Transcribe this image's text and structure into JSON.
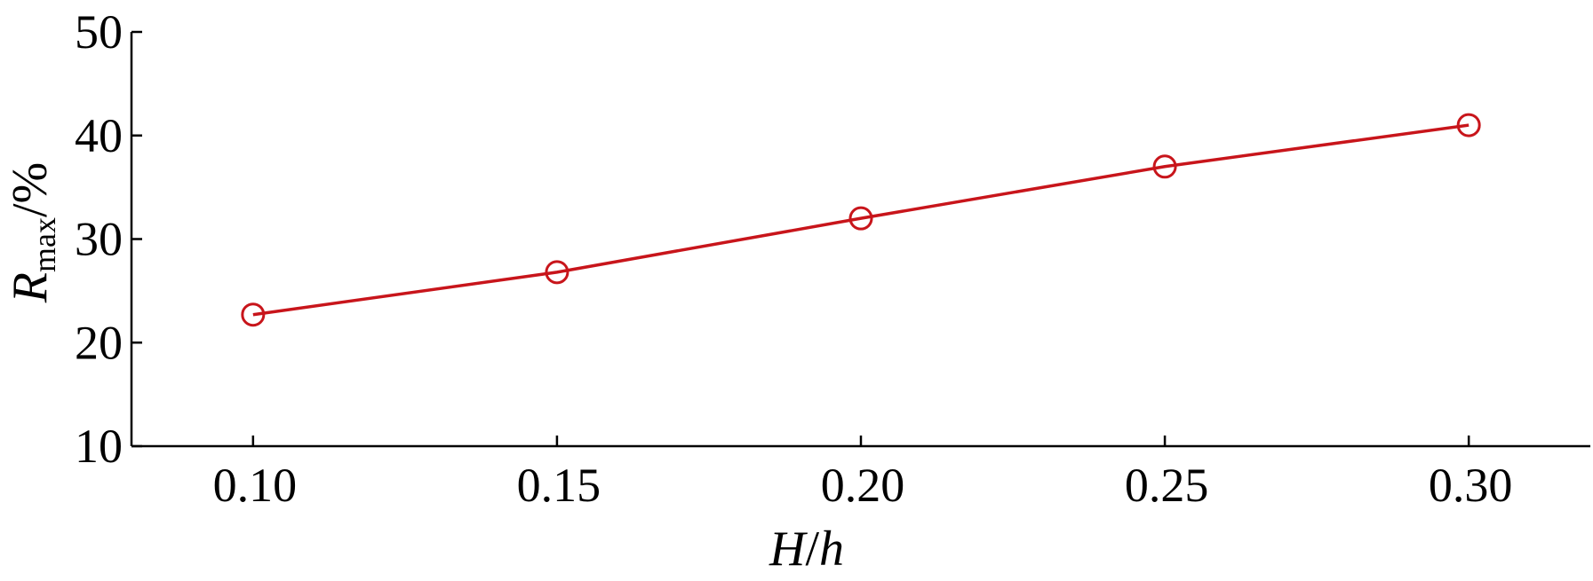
{
  "chart_data": {
    "type": "line",
    "xlabel": {
      "main": "H",
      "sep": "/",
      "sub": "h"
    },
    "ylabel": {
      "main": "R",
      "subscript": "max",
      "unit": "/%"
    },
    "x": [
      0.1,
      0.15,
      0.2,
      0.25,
      0.3
    ],
    "x_tick_labels": [
      "0.10",
      "0.15",
      "0.20",
      "0.25",
      "0.30"
    ],
    "y_ticks": [
      10,
      20,
      30,
      40,
      50
    ],
    "y_tick_labels": [
      "10",
      "20",
      "30",
      "40",
      "50"
    ],
    "xlim": [
      0.08,
      0.32
    ],
    "ylim": [
      10,
      50
    ],
    "grid": false,
    "series": [
      {
        "values": [
          22.7,
          26.8,
          32.0,
          37.0,
          41.0
        ],
        "color": "#c8151b",
        "marker": "circle-open"
      }
    ]
  }
}
